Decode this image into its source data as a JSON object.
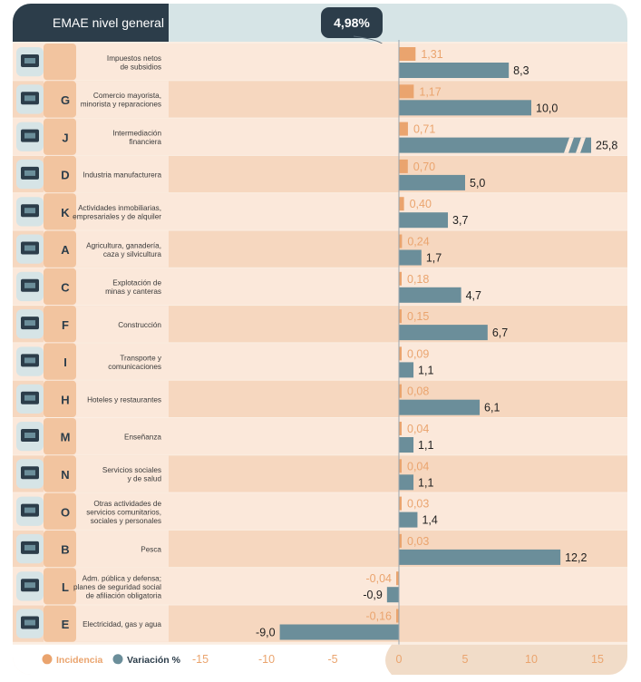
{
  "header": {
    "title": "EMAE nivel general",
    "total_value": "4,98%"
  },
  "legend": {
    "incidence_label": "Incidencia",
    "variation_label": "Variación %"
  },
  "colors": {
    "header_dark": "#2c3d4a",
    "header_light": "#d6e4e6",
    "incidence": "#eaa46e",
    "variation": "#6b8e9a",
    "row_light": "#fbe8da",
    "row_dark": "#f6d7bf",
    "letter_bg": "#f2c49f",
    "axis_band": "#f1dcc8"
  },
  "chart_data": {
    "type": "bar",
    "orientation": "horizontal",
    "xlim": [
      -17,
      15.8
    ],
    "x_ticks": [
      -15,
      -10,
      -5,
      0,
      5,
      10,
      15
    ],
    "x_tick_labels": [
      "-15",
      "-10",
      "-5",
      "0",
      "5",
      "10",
      "15"
    ],
    "categories": [
      {
        "letter": "",
        "icon": "taxes-icon",
        "label": [
          "Impuestos netos",
          "de subsidios"
        ],
        "incidence": 1.31,
        "incidence_label": "1,31",
        "variation": 8.3,
        "variation_label": "8,3"
      },
      {
        "letter": "G",
        "icon": "store-icon",
        "label": [
          "Comercio mayorista,",
          "minorista y reparaciones"
        ],
        "incidence": 1.17,
        "incidence_label": "1,17",
        "variation": 10.0,
        "variation_label": "10,0"
      },
      {
        "letter": "J",
        "icon": "bank-icon",
        "label": [
          "Intermediación",
          "financiera"
        ],
        "incidence": 0.71,
        "incidence_label": "0,71",
        "variation": 25.8,
        "variation_label": "25,8",
        "axis_break": true
      },
      {
        "letter": "D",
        "icon": "gears-icon",
        "label": [
          "Industria manufacturera"
        ],
        "incidence": 0.7,
        "incidence_label": "0,70",
        "variation": 5.0,
        "variation_label": "5,0"
      },
      {
        "letter": "K",
        "icon": "real-estate-icon",
        "label": [
          "Actividades inmobiliarias,",
          "empresariales y de alquiler"
        ],
        "incidence": 0.4,
        "incidence_label": "0,40",
        "variation": 3.7,
        "variation_label": "3,7"
      },
      {
        "letter": "A",
        "icon": "agriculture-icon",
        "label": [
          "Agricultura, ganadería,",
          "caza y silvicultura"
        ],
        "incidence": 0.24,
        "incidence_label": "0,24",
        "variation": 1.7,
        "variation_label": "1,7"
      },
      {
        "letter": "C",
        "icon": "mining-icon",
        "label": [
          "Explotación de",
          "minas y canteras"
        ],
        "incidence": 0.18,
        "incidence_label": "0,18",
        "variation": 4.7,
        "variation_label": "4,7"
      },
      {
        "letter": "F",
        "icon": "construction-icon",
        "label": [
          "Construcción"
        ],
        "incidence": 0.15,
        "incidence_label": "0,15",
        "variation": 6.7,
        "variation_label": "6,7"
      },
      {
        "letter": "I",
        "icon": "transport-icon",
        "label": [
          "Transporte y",
          "comunicaciones"
        ],
        "incidence": 0.09,
        "incidence_label": "0,09",
        "variation": 1.1,
        "variation_label": "1,1"
      },
      {
        "letter": "H",
        "icon": "hotel-icon",
        "label": [
          "Hoteles y restaurantes"
        ],
        "incidence": 0.08,
        "incidence_label": "0,08",
        "variation": 6.1,
        "variation_label": "6,1"
      },
      {
        "letter": "M",
        "icon": "education-icon",
        "label": [
          "Enseñanza"
        ],
        "incidence": 0.04,
        "incidence_label": "0,04",
        "variation": 1.1,
        "variation_label": "1,1"
      },
      {
        "letter": "N",
        "icon": "health-icon",
        "label": [
          "Servicios sociales",
          "y de salud"
        ],
        "incidence": 0.04,
        "incidence_label": "0,04",
        "variation": 1.1,
        "variation_label": "1,1"
      },
      {
        "letter": "O",
        "icon": "community-icon",
        "label": [
          "Otras actividades de",
          "servicios comunitarios,",
          "sociales y personales"
        ],
        "incidence": 0.03,
        "incidence_label": "0,03",
        "variation": 1.4,
        "variation_label": "1,4"
      },
      {
        "letter": "B",
        "icon": "fishing-icon",
        "label": [
          "Pesca"
        ],
        "incidence": 0.03,
        "incidence_label": "0,03",
        "variation": 12.2,
        "variation_label": "12,2"
      },
      {
        "letter": "L",
        "icon": "government-icon",
        "label": [
          "Adm. pública y defensa;",
          "planes de seguridad social",
          "de afiliación obligatoria"
        ],
        "incidence": -0.04,
        "incidence_label": "-0,04",
        "variation": -0.9,
        "variation_label": "-0,9"
      },
      {
        "letter": "E",
        "icon": "utilities-icon",
        "label": [
          "Electricidad, gas y agua"
        ],
        "incidence": -0.16,
        "incidence_label": "-0,16",
        "variation": -9.0,
        "variation_label": "-9,0"
      }
    ]
  }
}
